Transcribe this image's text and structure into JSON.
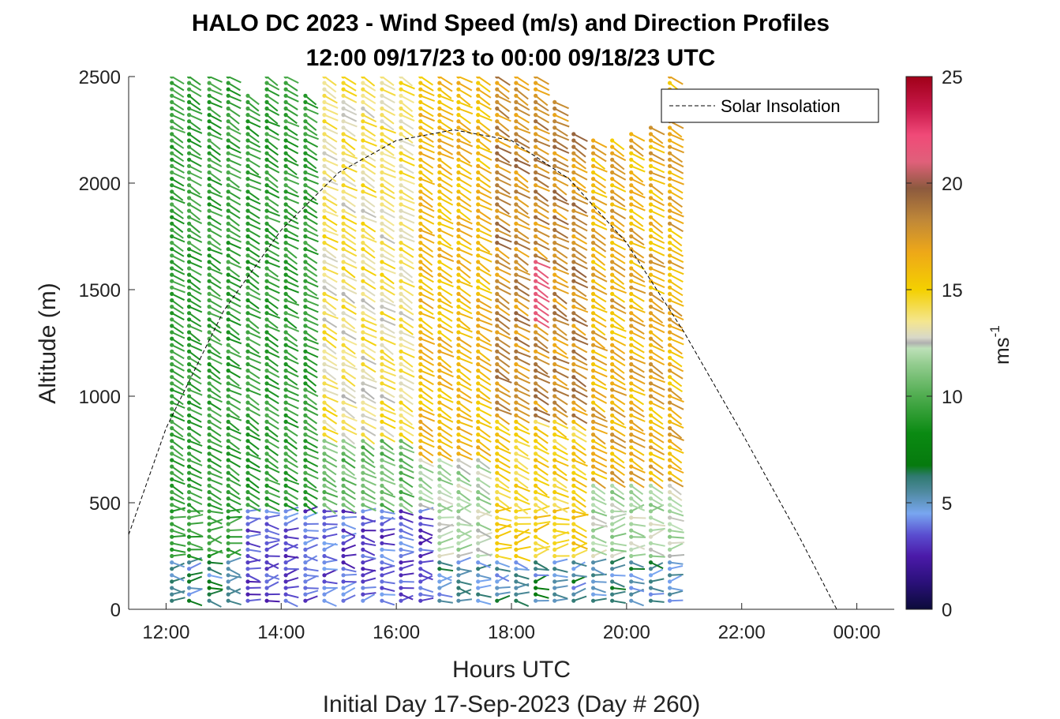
{
  "chart_data": {
    "type": "scatter",
    "title": "HALO DC 2023 - Wind Speed (m/s) and Direction Profiles",
    "subtitle": "12:00 09/17/23 to 00:00 09/18/23  UTC",
    "xlabel": "Hours UTC",
    "ylabel": "Altitude (m)",
    "footer": "Initial Day 17-Sep-2023 (Day # 260)",
    "xlim": [
      11.35,
      24.65
    ],
    "ylim": [
      0,
      2500
    ],
    "x_ticks": [
      12,
      14,
      16,
      18,
      20,
      22,
      24
    ],
    "x_tick_labels": [
      "12:00",
      "14:00",
      "16:00",
      "18:00",
      "20:00",
      "22:00",
      "00:00"
    ],
    "y_ticks": [
      0,
      500,
      1000,
      1500,
      2000,
      2500
    ],
    "y_tick_labels": [
      "0",
      "500",
      "1000",
      "1500",
      "2000",
      "2500"
    ],
    "colorbar": {
      "label_base": "ms",
      "label_exp": "-1",
      "ticks": [
        0,
        5,
        10,
        15,
        20,
        25
      ],
      "tick_labels": [
        "0",
        "5",
        "10",
        "15",
        "20",
        "25"
      ],
      "range": [
        0,
        25
      ]
    },
    "legend": {
      "entries": [
        "Solar Insolation"
      ],
      "placement": "top-right"
    },
    "profile_times_h": [
      12.1,
      12.4,
      12.75,
      13.08,
      13.42,
      13.75,
      14.08,
      14.42,
      14.75,
      15.08,
      15.42,
      15.75,
      16.08,
      16.42,
      16.75,
      17.08,
      17.42,
      17.75,
      18.08,
      18.42,
      18.75,
      19.08,
      19.42,
      19.75,
      20.08,
      20.42,
      20.75
    ],
    "profile_top_m": [
      2500,
      2500,
      2500,
      2500,
      2420,
      2500,
      2500,
      2420,
      2500,
      2500,
      2500,
      2500,
      2500,
      2500,
      2500,
      2500,
      2500,
      2500,
      2500,
      2500,
      2380,
      2240,
      2200,
      2220,
      2250,
      2280,
      2500
    ],
    "gate_spacing_m": 30,
    "solar_insolation_curve": {
      "hours": [
        11.35,
        12.0,
        13.0,
        14.0,
        15.0,
        16.0,
        17.0,
        18.0,
        19.0,
        20.0,
        21.0,
        22.0,
        23.0,
        23.65,
        24.65
      ],
      "relative_altitude_m": [
        350,
        850,
        1400,
        1780,
        2050,
        2200,
        2250,
        2200,
        2020,
        1720,
        1300,
        830,
        340,
        0,
        0
      ]
    }
  }
}
